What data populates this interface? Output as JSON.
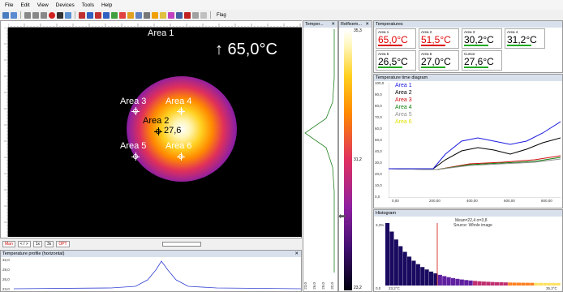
{
  "menu": [
    "File",
    "Edit",
    "View",
    "Devices",
    "Tools",
    "Help"
  ],
  "toolbar": {
    "flag_label": "Flag"
  },
  "thermal": {
    "big_temp": "↑ 65,0°C",
    "areas": [
      {
        "label": "Area 1"
      },
      {
        "label": "Area 3"
      },
      {
        "label": "Area 4"
      },
      {
        "label": "Area 2"
      },
      {
        "label": "27,6"
      },
      {
        "label": "Area 5"
      },
      {
        "label": "Area 6"
      }
    ]
  },
  "playbar": {
    "buttons": [
      "Man",
      "< / >",
      "1x",
      "3x",
      "OPT"
    ]
  },
  "profile": {
    "title": "Temperature profile (horizontal)",
    "yticks": [
      "32,0",
      "29,0",
      "26,0",
      "23,0"
    ]
  },
  "vprofile": {
    "title": "Temper...",
    "xticks": [
      "23,0",
      "26,0",
      "29,0",
      "32,0"
    ]
  },
  "scale": {
    "title": "Relfixem...",
    "top": "35,3",
    "mid": "31,2",
    "bottom": "23,2"
  },
  "temperatures": {
    "title": "Temperatures",
    "cells": [
      {
        "name": "Area 1",
        "value": "65,0°C",
        "color": "#e00000"
      },
      {
        "name": "Area 2",
        "value": "51,5°C",
        "color": "#e00000"
      },
      {
        "name": "Area 3",
        "value": "30,2°C",
        "color": "#000000"
      },
      {
        "name": "Area 4",
        "value": "31,2°C",
        "color": "#000000"
      },
      {
        "name": "Area 5",
        "value": "26,5°C",
        "color": "#000000"
      },
      {
        "name": "Area 6",
        "value": "27,0°C",
        "color": "#000000"
      },
      {
        "name": "Cursor",
        "value": "27,6°C",
        "color": "#000000"
      }
    ]
  },
  "diagram": {
    "title": "Temperature time diagram",
    "legend": [
      {
        "name": "Area 1",
        "color": "#1a1ae0"
      },
      {
        "name": "Area 2",
        "color": "#000000"
      },
      {
        "name": "Area 3",
        "color": "#d01010"
      },
      {
        "name": "Area 4",
        "color": "#108010"
      },
      {
        "name": "Area 5",
        "color": "#909090"
      },
      {
        "name": "Area 6",
        "color": "#e0e000"
      }
    ],
    "yticks": [
      "100,0",
      "90,0",
      "80,0",
      "70,0",
      "60,0",
      "50,0",
      "40,0",
      "30,0",
      "20,0",
      "10,0",
      "0,0"
    ],
    "xticks": [
      "0,00",
      "200,00",
      "400,00",
      "600,00",
      "800,00"
    ]
  },
  "histogram": {
    "title": "Histogram",
    "stats": "Mean=22,4 σ=3,8",
    "source": "Source: Whole image",
    "ytop": "3,3%",
    "xleft": "0,0",
    "xmin": "23,2°C",
    "xmax": "35,3°C"
  }
}
